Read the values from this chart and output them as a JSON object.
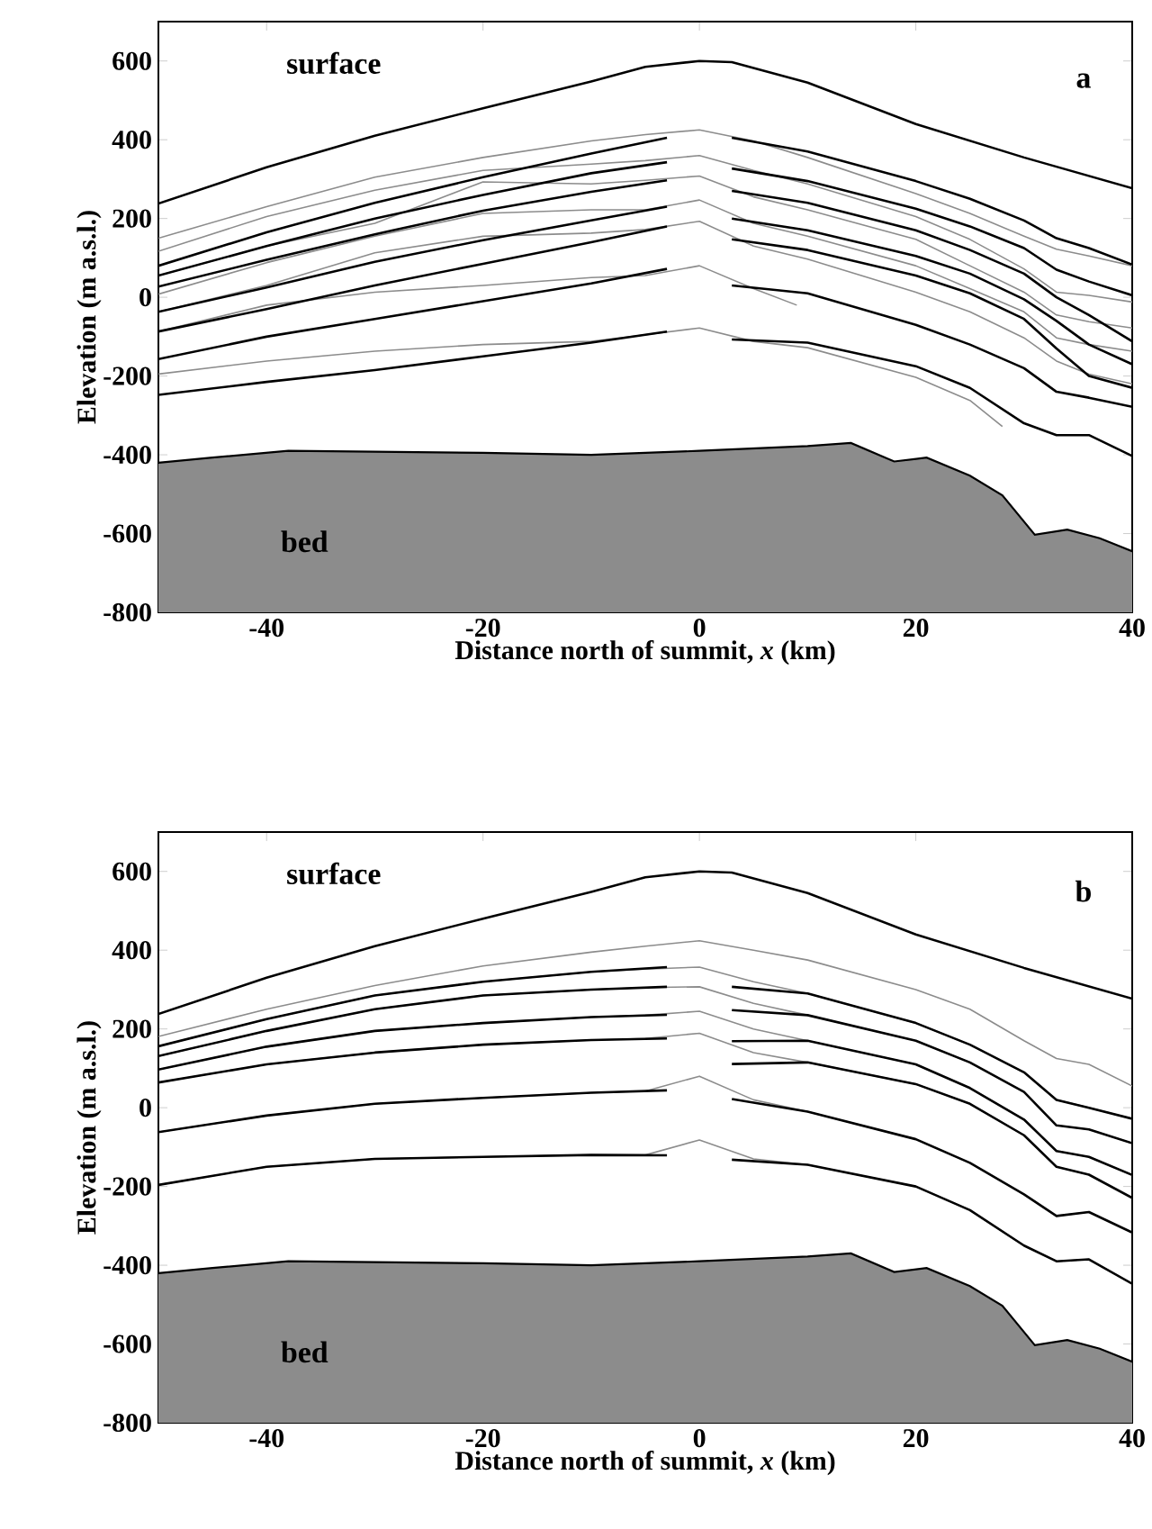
{
  "chart_data": [
    {
      "type": "line",
      "xlabel": "Distance north of summit, *x* (km)",
      "ylabel": "Elevation (m a.s.l.)",
      "xlim": [
        -50,
        40
      ],
      "ylim": [
        -800,
        700
      ],
      "xticks": [
        -40,
        -20,
        0,
        20,
        40
      ],
      "yticks": [
        -800,
        -600,
        -400,
        -200,
        0,
        200,
        400,
        600
      ],
      "annotations": [
        "surface",
        "bed",
        "a"
      ],
      "series": [
        {
          "type": "area",
          "color": "#8c8c8c",
          "x": [
            -50,
            -45,
            -38,
            -20,
            -10,
            0,
            10,
            14,
            18,
            21,
            25,
            28,
            31,
            34,
            37,
            40
          ],
          "values": [
            -420,
            -407,
            -390,
            -395,
            -400,
            -390,
            -378,
            -370,
            -417,
            -407,
            -453,
            -503,
            -603,
            -590,
            -612,
            -645
          ]
        },
        {
          "color": "#000000",
          "x": [
            -50,
            -40,
            -30,
            -20,
            -10,
            -5,
            0,
            3,
            10,
            20,
            30,
            40
          ],
          "values": [
            238,
            330,
            410,
            480,
            548,
            585,
            600,
            597,
            545,
            440,
            355,
            277
          ]
        },
        {
          "color": "#8c8c8c",
          "x": [
            -50,
            -40,
            -30,
            -20,
            -10,
            -5,
            0,
            5,
            10,
            20,
            25,
            30,
            33,
            36,
            40
          ],
          "values": [
            150,
            230,
            305,
            355,
            397,
            413,
            425,
            397,
            355,
            263,
            213,
            155,
            122,
            105,
            80
          ]
        },
        {
          "color": "#8c8c8c",
          "x": [
            -50,
            -40,
            -30,
            -20,
            -10,
            -5,
            0,
            5,
            10,
            20,
            25,
            30,
            33,
            36,
            40
          ],
          "values": [
            117,
            205,
            272,
            322,
            338,
            347,
            360,
            322,
            288,
            205,
            147,
            72,
            13,
            5,
            -12
          ]
        },
        {
          "color": "#8c8c8c",
          "x": [
            -50,
            -40,
            -30,
            -20,
            -10,
            -5,
            0,
            5,
            10,
            20,
            25,
            30,
            33,
            36,
            40
          ],
          "values": [
            55,
            130,
            188,
            293,
            288,
            297,
            308,
            255,
            222,
            147,
            80,
            13,
            -45,
            -62,
            -78
          ]
        },
        {
          "color": "#8c8c8c",
          "x": [
            -50,
            -40,
            -30,
            -20,
            -10,
            -5,
            0,
            5,
            10,
            20,
            25,
            30,
            33,
            36,
            40
          ],
          "values": [
            8,
            88,
            155,
            213,
            222,
            222,
            247,
            188,
            155,
            80,
            22,
            -37,
            -103,
            -120,
            -137
          ]
        },
        {
          "color": "#8c8c8c",
          "x": [
            -50,
            -40,
            -30,
            -20,
            -10,
            -5,
            0,
            5,
            10,
            20,
            25,
            30,
            33,
            36,
            40
          ],
          "values": [
            -37,
            30,
            113,
            155,
            163,
            172,
            193,
            130,
            97,
            13,
            -37,
            -103,
            -162,
            -195,
            -220
          ]
        },
        {
          "color": "#8c8c8c",
          "x": [
            -50,
            -40,
            -30,
            -20,
            -10,
            -5,
            0,
            5,
            9
          ],
          "values": [
            -87,
            -20,
            13,
            30,
            50,
            55,
            80,
            22,
            -20
          ]
        },
        {
          "color": "#8c8c8c",
          "x": [
            -50,
            -40,
            -30,
            -20,
            -10,
            -5,
            0,
            5,
            10,
            20,
            25,
            28
          ],
          "values": [
            -195,
            -162,
            -137,
            -120,
            -112,
            -95,
            -78,
            -112,
            -128,
            -203,
            -262,
            -328
          ]
        },
        {
          "color": "#000000",
          "x": [
            -50,
            -40,
            -30,
            -20,
            -10,
            -3,
            0,
            3,
            10,
            20,
            25,
            30,
            33,
            36,
            40
          ],
          "values": [
            80,
            165,
            240,
            305,
            365,
            405,
            null,
            405,
            370,
            295,
            250,
            195,
            150,
            125,
            83
          ]
        },
        {
          "color": "#000000",
          "x": [
            -50,
            -40,
            -30,
            -20,
            -10,
            -3,
            0,
            3,
            10,
            20,
            25,
            30,
            33,
            36,
            40
          ],
          "values": [
            55,
            130,
            200,
            260,
            315,
            343,
            null,
            327,
            295,
            225,
            180,
            125,
            70,
            40,
            5
          ]
        },
        {
          "color": "#000000",
          "x": [
            -50,
            -40,
            -30,
            -20,
            -10,
            -3,
            0,
            3,
            10,
            20,
            25,
            30,
            33,
            36,
            40
          ],
          "values": [
            27,
            95,
            160,
            220,
            268,
            297,
            null,
            270,
            240,
            170,
            120,
            60,
            0,
            -45,
            -112
          ]
        },
        {
          "color": "#000000",
          "x": [
            -50,
            -40,
            -30,
            -20,
            -10,
            -3,
            0,
            3,
            10,
            20,
            25,
            30,
            33,
            36,
            40
          ],
          "values": [
            -37,
            25,
            90,
            145,
            195,
            230,
            null,
            200,
            170,
            105,
            60,
            -5,
            -60,
            -120,
            -170
          ]
        },
        {
          "color": "#000000",
          "x": [
            -50,
            -40,
            -30,
            -20,
            -10,
            -3,
            0,
            3,
            10,
            20,
            25,
            30,
            33,
            36,
            40
          ],
          "values": [
            -87,
            -30,
            30,
            85,
            140,
            180,
            null,
            147,
            120,
            55,
            10,
            -55,
            -130,
            -200,
            -230
          ]
        },
        {
          "color": "#000000",
          "x": [
            -50,
            -40,
            -30,
            -20,
            -10,
            -3,
            0,
            3,
            10,
            20,
            25,
            30,
            33,
            36,
            40
          ],
          "values": [
            -157,
            -100,
            -55,
            -10,
            35,
            72,
            null,
            30,
            10,
            -70,
            -120,
            -180,
            -240,
            -255,
            -278
          ]
        },
        {
          "color": "#000000",
          "x": [
            -50,
            -40,
            -30,
            -20,
            -10,
            -3,
            0,
            3,
            10,
            20,
            25,
            30,
            33,
            36,
            40
          ],
          "values": [
            -248,
            -215,
            -185,
            -150,
            -115,
            -87,
            null,
            -107,
            -115,
            -175,
            -230,
            -320,
            -350,
            -350,
            -403
          ]
        }
      ]
    },
    {
      "type": "line",
      "xlabel": "Distance north of summit, *x* (km)",
      "ylabel": "Elevation (m a.s.l.)",
      "xlim": [
        -50,
        40
      ],
      "ylim": [
        -800,
        700
      ],
      "xticks": [
        -40,
        -20,
        0,
        20,
        40
      ],
      "yticks": [
        -800,
        -600,
        -400,
        -200,
        0,
        200,
        400,
        600
      ],
      "annotations": [
        "surface",
        "bed",
        "b"
      ],
      "series": [
        {
          "type": "area",
          "color": "#8c8c8c",
          "x": [
            -50,
            -45,
            -38,
            -20,
            -10,
            0,
            10,
            14,
            18,
            21,
            25,
            28,
            31,
            34,
            37,
            40
          ],
          "values": [
            -420,
            -407,
            -390,
            -395,
            -400,
            -390,
            -378,
            -370,
            -417,
            -407,
            -453,
            -503,
            -603,
            -590,
            -612,
            -645
          ]
        },
        {
          "color": "#000000",
          "x": [
            -50,
            -40,
            -30,
            -20,
            -10,
            -5,
            0,
            3,
            10,
            20,
            30,
            40
          ],
          "values": [
            238,
            330,
            410,
            480,
            548,
            585,
            600,
            597,
            545,
            440,
            355,
            277
          ]
        },
        {
          "color": "#8c8c8c",
          "x": [
            -50,
            -40,
            -30,
            -20,
            -10,
            -5,
            0,
            5,
            10,
            20,
            25,
            30,
            33,
            36,
            40
          ],
          "values": [
            181,
            250,
            310,
            360,
            395,
            410,
            424,
            400,
            375,
            300,
            250,
            170,
            125,
            110,
            55
          ]
        },
        {
          "color": "#8c8c8c",
          "x": [
            -50,
            -40,
            -30,
            -20,
            -10,
            -5,
            0,
            5,
            10,
            20,
            25,
            30,
            33,
            36,
            40
          ],
          "values": [
            156,
            225,
            285,
            320,
            345,
            352,
            357,
            320,
            290,
            215,
            160,
            90,
            20,
            0,
            -28
          ]
        },
        {
          "color": "#8c8c8c",
          "x": [
            -50,
            -40,
            -30,
            -20,
            -10,
            -5,
            0,
            5,
            10,
            20,
            25,
            30,
            33,
            36,
            40
          ],
          "values": [
            131,
            195,
            250,
            285,
            300,
            305,
            307,
            265,
            235,
            170,
            115,
            40,
            -45,
            -55,
            -90
          ]
        },
        {
          "color": "#8c8c8c",
          "x": [
            -50,
            -40,
            -30,
            -20,
            -10,
            -5,
            0,
            5,
            10,
            20,
            25,
            30,
            33,
            36,
            40
          ],
          "values": [
            97,
            155,
            195,
            215,
            230,
            235,
            245,
            200,
            170,
            110,
            50,
            -30,
            -110,
            -125,
            -171
          ]
        },
        {
          "color": "#8c8c8c",
          "x": [
            -50,
            -40,
            -30,
            -20,
            -10,
            -5,
            0,
            5,
            10,
            20,
            25,
            30,
            33,
            36,
            40
          ],
          "values": [
            64,
            110,
            140,
            160,
            172,
            176,
            189,
            140,
            115,
            60,
            10,
            -70,
            -150,
            -170,
            -229
          ]
        },
        {
          "color": "#8c8c8c",
          "x": [
            -50,
            -40,
            -30,
            -20,
            -10,
            -5,
            0,
            5,
            10,
            20,
            25,
            30,
            33,
            36,
            40
          ],
          "values": [
            -62,
            -20,
            10,
            25,
            38,
            42,
            80,
            20,
            -10,
            -80,
            -140,
            -220,
            -275,
            -265,
            -317
          ]
        },
        {
          "color": "#8c8c8c",
          "x": [
            -50,
            -40,
            -30,
            -20,
            -10,
            -5,
            0,
            5,
            10,
            20,
            25,
            30,
            33,
            36,
            40
          ],
          "values": [
            -196,
            -150,
            -130,
            -125,
            -120,
            -120,
            -82,
            -130,
            -145,
            -200,
            -260,
            -350,
            -390,
            -385,
            -447
          ]
        },
        {
          "color": "#000000",
          "x": [
            -50,
            -40,
            -30,
            -20,
            -10,
            -3,
            0,
            3,
            10,
            20,
            25,
            30,
            33,
            36,
            40
          ],
          "values": [
            156,
            225,
            285,
            320,
            345,
            357,
            null,
            307,
            290,
            215,
            160,
            90,
            20,
            0,
            -28
          ]
        },
        {
          "color": "#000000",
          "x": [
            -50,
            -40,
            -30,
            -20,
            -10,
            -3,
            0,
            3,
            10,
            20,
            25,
            30,
            33,
            36,
            40
          ],
          "values": [
            131,
            195,
            250,
            285,
            300,
            307,
            null,
            248,
            235,
            170,
            115,
            40,
            -45,
            -55,
            -90
          ]
        },
        {
          "color": "#000000",
          "x": [
            -50,
            -40,
            -30,
            -20,
            -10,
            -3,
            0,
            3,
            10,
            20,
            25,
            30,
            33,
            36,
            40
          ],
          "values": [
            97,
            155,
            195,
            215,
            230,
            236,
            null,
            169,
            170,
            110,
            50,
            -30,
            -110,
            -125,
            -171
          ]
        },
        {
          "color": "#000000",
          "x": [
            -50,
            -40,
            -30,
            -20,
            -10,
            -3,
            0,
            3,
            10,
            20,
            25,
            30,
            33,
            36,
            40
          ],
          "values": [
            64,
            110,
            140,
            160,
            172,
            176,
            null,
            111,
            115,
            60,
            10,
            -70,
            -150,
            -170,
            -229
          ]
        },
        {
          "color": "#000000",
          "x": [
            -50,
            -40,
            -30,
            -20,
            -10,
            -3,
            0,
            3,
            10,
            20,
            25,
            30,
            33,
            36,
            40
          ],
          "values": [
            -62,
            -20,
            10,
            25,
            38,
            44,
            null,
            22,
            -10,
            -80,
            -140,
            -220,
            -275,
            -265,
            -317
          ]
        },
        {
          "color": "#000000",
          "x": [
            -50,
            -40,
            -30,
            -20,
            -10,
            -3,
            0,
            3,
            10,
            20,
            25,
            30,
            33,
            36,
            40
          ],
          "values": [
            -196,
            -150,
            -130,
            -125,
            -120,
            -121,
            null,
            -132,
            -145,
            -200,
            -260,
            -350,
            -390,
            -385,
            -447
          ]
        }
      ]
    }
  ]
}
